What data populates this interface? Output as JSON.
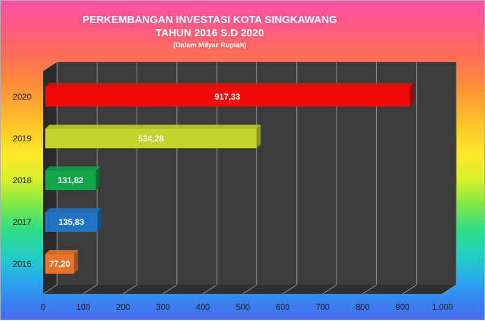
{
  "chart_data": {
    "type": "bar",
    "orientation": "horizontal",
    "title": "PERKEMBANGAN INVESTASI KOTA SINGKAWANG",
    "title_line2": "TAHUN 2016 S.D 2020",
    "subtitle": "(Dalam Milyar Rupiah)",
    "categories": [
      "2016",
      "2017",
      "2018",
      "2019",
      "2020"
    ],
    "values": [
      77.2,
      135.83,
      131.82,
      534.28,
      917.33
    ],
    "value_labels": [
      "77,20",
      "135,83",
      "131,82",
      "534,28",
      "917,33"
    ],
    "bar_colors": [
      "#e8742a",
      "#1f73c2",
      "#12a64a",
      "#c4d42a",
      "#f00a0a"
    ],
    "bar_side_colors": [
      "#a4501a",
      "#144e86",
      "#0b6e31",
      "#8a951c",
      "#a30606"
    ],
    "xlim": [
      0,
      1000
    ],
    "x_ticks": [
      0,
      100,
      200,
      300,
      400,
      500,
      600,
      700,
      800,
      900,
      1000
    ],
    "x_tick_labels": [
      "0",
      "100",
      "200",
      "300",
      "400",
      "500",
      "600",
      "700",
      "800",
      "900",
      "1.000"
    ],
    "grid": true,
    "plot_background": "#3c3c3c",
    "title_color": "#ffffff"
  }
}
